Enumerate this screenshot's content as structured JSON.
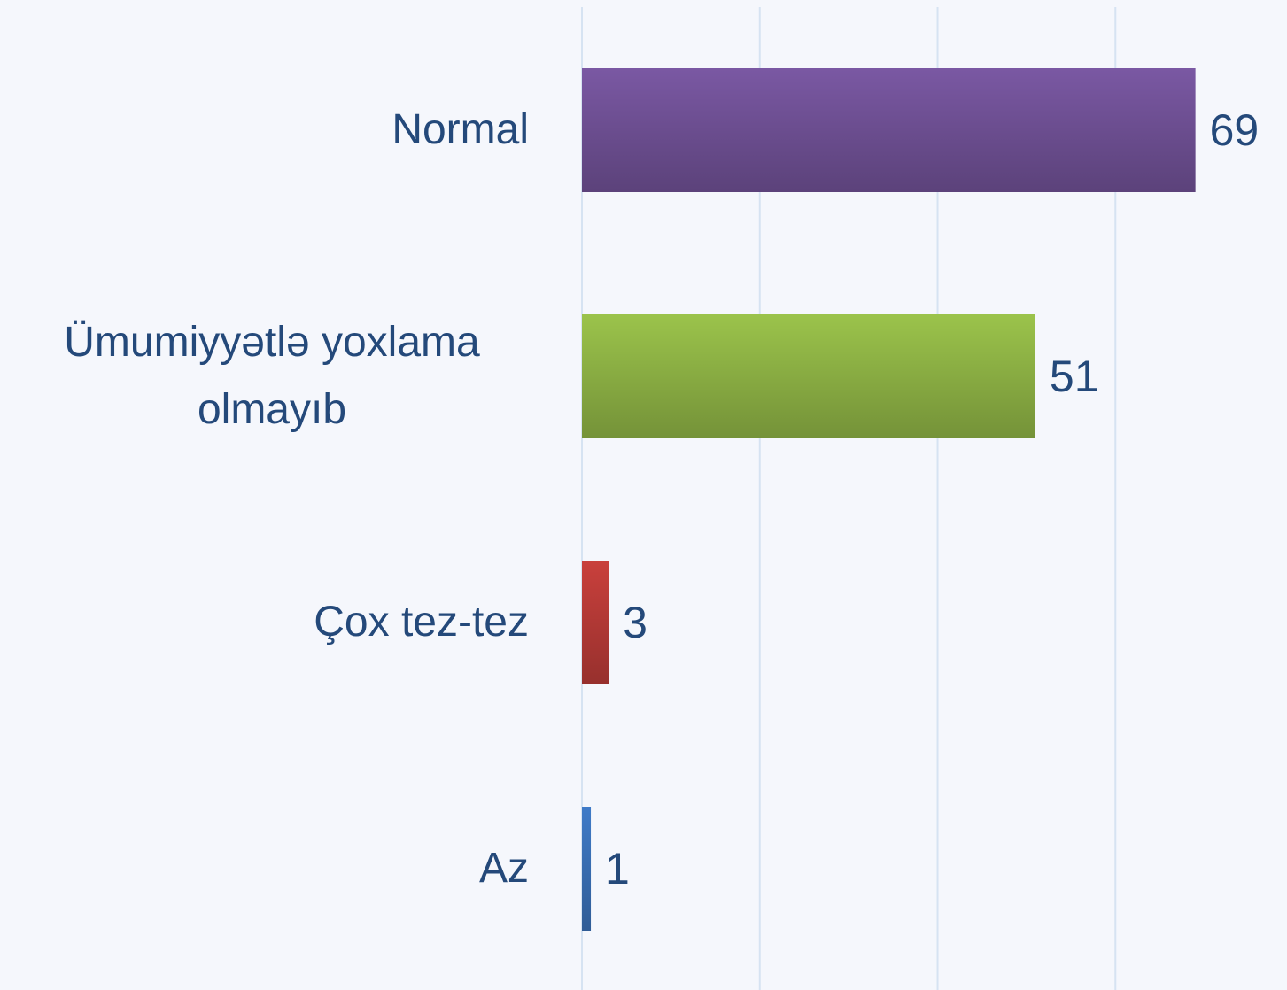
{
  "chart_data": {
    "type": "barh",
    "categories": [
      "Normal",
      "Ümumiyyətlə yoxlama olmayıb",
      "Çox tez-tez",
      "Az"
    ],
    "values": [
      69,
      51,
      3,
      1
    ],
    "colors": [
      "#7a58a3",
      "#9bc34b",
      "#c9403c",
      "#3f7bc8"
    ],
    "xlim": [
      0,
      79
    ],
    "xticks": [
      0,
      20,
      40,
      60
    ],
    "grid": true
  }
}
